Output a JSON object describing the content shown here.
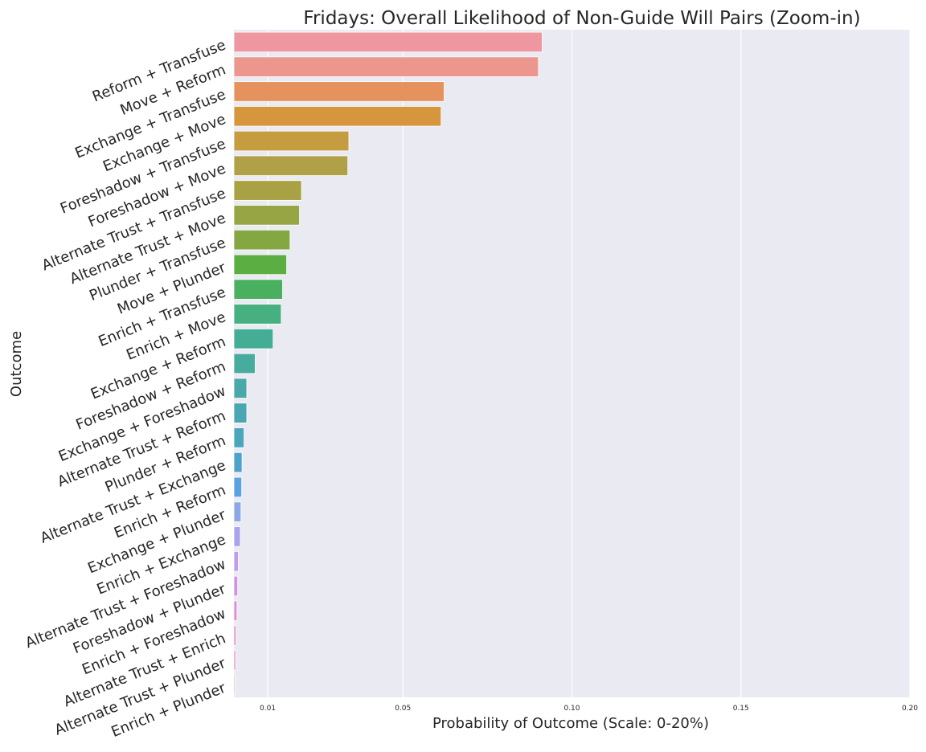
{
  "chart_data": {
    "type": "bar",
    "orientation": "horizontal",
    "title": "Fridays: Overall Likelihood of Non-Guide Will Pairs (Zoom-in)",
    "xlabel": "Probability of Outcome (Scale: 0-20%)",
    "ylabel": "Outcome",
    "xlim": [
      0,
      0.2
    ],
    "xticks": [
      0.01,
      0.05,
      0.1,
      0.15,
      0.2
    ],
    "xtick_labels": [
      "0.01",
      "0.05",
      "0.10",
      "0.15",
      "0.20"
    ],
    "grid": true,
    "categories": [
      "Reform + Transfuse",
      "Move + Reform",
      "Exchange + Transfuse",
      "Exchange + Move",
      "Foreshadow + Transfuse",
      "Foreshadow + Move",
      "Alternate Trust + Transfuse",
      "Alternate Trust + Move",
      "Plunder + Transfuse",
      "Move + Plunder",
      "Enrich + Transfuse",
      "Enrich + Move",
      "Exchange + Reform",
      "Foreshadow + Reform",
      "Exchange + Foreshadow",
      "Alternate Trust + Reform",
      "Plunder + Reform",
      "Alternate Trust + Exchange",
      "Enrich + Reform",
      "Exchange + Plunder",
      "Enrich + Exchange",
      "Alternate Trust + Foreshadow",
      "Foreshadow + Plunder",
      "Enrich + Foreshadow",
      "Alternate Trust + Enrich",
      "Alternate Trust + Plunder",
      "Enrich + Plunder"
    ],
    "values": [
      0.0912,
      0.0901,
      0.0622,
      0.0613,
      0.034,
      0.0337,
      0.02,
      0.0194,
      0.0166,
      0.0156,
      0.0144,
      0.014,
      0.0116,
      0.0063,
      0.0038,
      0.0038,
      0.003,
      0.0024,
      0.0023,
      0.0021,
      0.0019,
      0.0013,
      0.0011,
      0.0009,
      0.0006,
      0.0005,
      0.0003
    ],
    "colors": [
      "#ee97a1",
      "#ec968d",
      "#e5925f",
      "#d5963e",
      "#c59d40",
      "#b0a048",
      "#a9a244",
      "#97a544",
      "#84a742",
      "#5bae42",
      "#48b05f",
      "#46b080",
      "#46ad95",
      "#47ab9d",
      "#48a9a8",
      "#49a7b2",
      "#4aa5bd",
      "#4ca3c9",
      "#5ba2e0",
      "#8ca8e8",
      "#a8a4ec",
      "#bf9cec",
      "#d18fea",
      "#e08bd9",
      "#e88ac5",
      "#ea8cb7",
      "#ed91ab"
    ]
  }
}
